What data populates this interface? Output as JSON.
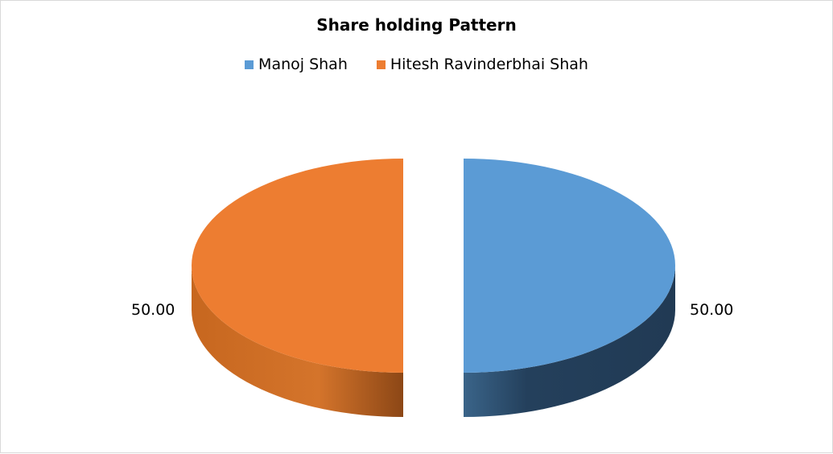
{
  "chart_data": {
    "type": "pie",
    "title": "Share holding Pattern",
    "categories": [
      "Manoj Shah",
      "Hitesh Ravinderbhai Shah"
    ],
    "values": [
      50.0,
      50.0
    ],
    "data_labels": [
      "50.00",
      "50.00"
    ],
    "colors": [
      "#5b9bd5",
      "#ed7d31"
    ],
    "side_colors": [
      "#24405c",
      "#b9611f"
    ],
    "style": "3d-exploded",
    "legend_position": "top"
  }
}
